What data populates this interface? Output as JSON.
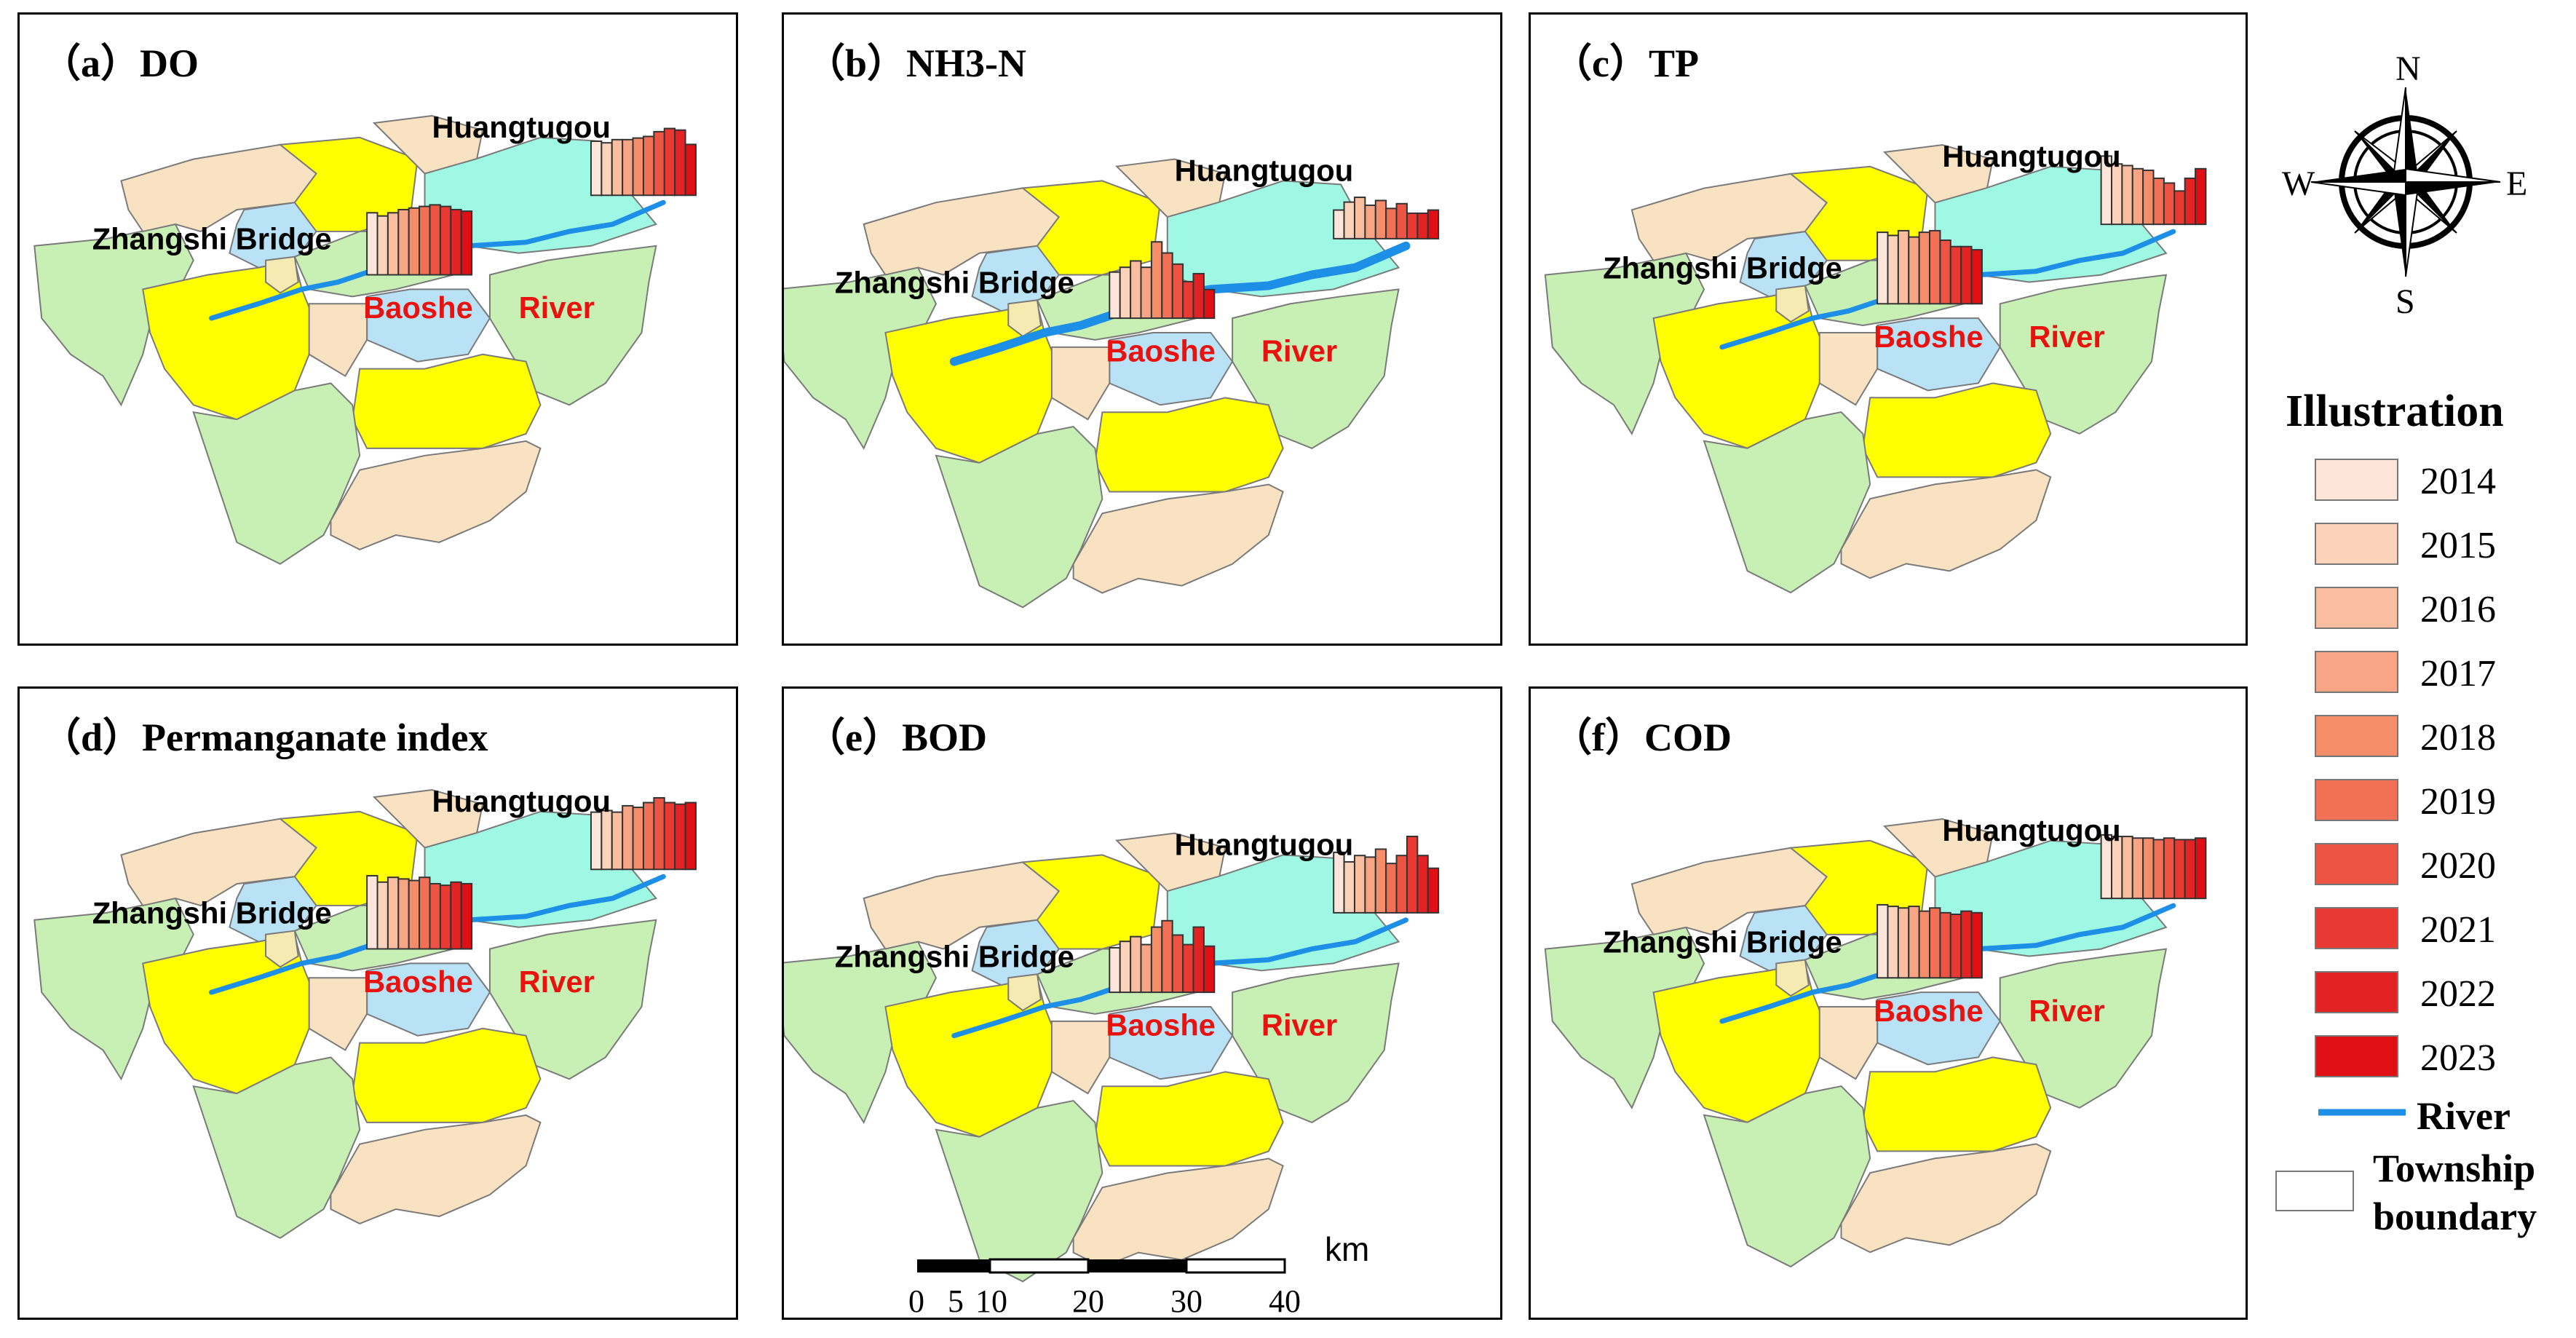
{
  "panels": [
    {
      "title": "（a）DO",
      "bars_zhangshi": [
        0.78,
        0.74,
        0.78,
        0.82,
        0.84,
        0.86,
        0.88,
        0.86,
        0.82,
        0.8
      ],
      "bars_huangtugou": [
        0.68,
        0.66,
        0.7,
        0.7,
        0.72,
        0.74,
        0.8,
        0.84,
        0.82,
        0.64
      ]
    },
    {
      "title": "（b）NH3-N",
      "bars_zhangshi": [
        0.58,
        0.64,
        0.72,
        0.64,
        0.96,
        0.82,
        0.68,
        0.46,
        0.56,
        0.36
      ],
      "bars_huangtugou": [
        0.36,
        0.46,
        0.52,
        0.42,
        0.48,
        0.38,
        0.44,
        0.32,
        0.32,
        0.36
      ]
    },
    {
      "title": "（c）TP",
      "bars_zhangshi": [
        0.9,
        0.86,
        0.92,
        0.84,
        0.9,
        0.92,
        0.8,
        0.72,
        0.72,
        0.68
      ],
      "bars_huangtugou": [
        0.86,
        0.76,
        0.74,
        0.7,
        0.68,
        0.58,
        0.52,
        0.42,
        0.58,
        0.7
      ]
    },
    {
      "title": "（d）Permanganate index",
      "bars_zhangshi": [
        0.92,
        0.84,
        0.9,
        0.88,
        0.86,
        0.9,
        0.82,
        0.8,
        0.84,
        0.82
      ],
      "bars_huangtugou": [
        0.72,
        0.74,
        0.72,
        0.8,
        0.78,
        0.84,
        0.9,
        0.84,
        0.82,
        0.84
      ]
    },
    {
      "title": "（e）BOD",
      "bars_zhangshi": [
        0.56,
        0.64,
        0.7,
        0.6,
        0.82,
        0.9,
        0.72,
        0.6,
        0.82,
        0.58
      ],
      "bars_huangtugou": [
        0.76,
        0.64,
        0.72,
        0.7,
        0.8,
        0.62,
        0.72,
        0.96,
        0.72,
        0.56
      ]
    },
    {
      "title": "（f）COD",
      "bars_zhangshi": [
        0.92,
        0.9,
        0.88,
        0.9,
        0.84,
        0.88,
        0.82,
        0.8,
        0.84,
        0.82
      ],
      "bars_huangtugou": [
        0.8,
        0.78,
        0.78,
        0.76,
        0.76,
        0.74,
        0.76,
        0.74,
        0.74,
        0.76
      ]
    }
  ],
  "labels": {
    "huangtugou": "Huangtugou",
    "zhangshi": "Zhangshi Bridge",
    "baoshe": "Baoshe",
    "river_word": "River"
  },
  "compass": {
    "n": "N",
    "s": "S",
    "e": "E",
    "w": "W"
  },
  "legend": {
    "title": "Illustration",
    "years": [
      {
        "label": "2014",
        "color": "#fde6d9"
      },
      {
        "label": "2015",
        "color": "#fbd2ba"
      },
      {
        "label": "2016",
        "color": "#f9bea0"
      },
      {
        "label": "2017",
        "color": "#f7a584"
      },
      {
        "label": "2018",
        "color": "#f58c6a"
      },
      {
        "label": "2019",
        "color": "#f27055"
      },
      {
        "label": "2020",
        "color": "#ee5443"
      },
      {
        "label": "2021",
        "color": "#e83a33"
      },
      {
        "label": "2022",
        "color": "#e32223"
      },
      {
        "label": "2023",
        "color": "#df0f14"
      }
    ],
    "river_label": "River",
    "township_label_1": "Township",
    "township_label_2": "boundary"
  },
  "scalebar": {
    "unit": "km",
    "ticks": [
      "0",
      "5",
      "10",
      "20",
      "30",
      "40"
    ]
  },
  "colors": {
    "yellow": "#ffff00",
    "green": "#c8f0b4",
    "beige": "#f9e2c2",
    "cyan": "#9ff8e4",
    "lightblue": "#b9e2f6",
    "river": "#1e8fe6",
    "red_label": "#e8130f",
    "tan": "#f5ebb2"
  }
}
